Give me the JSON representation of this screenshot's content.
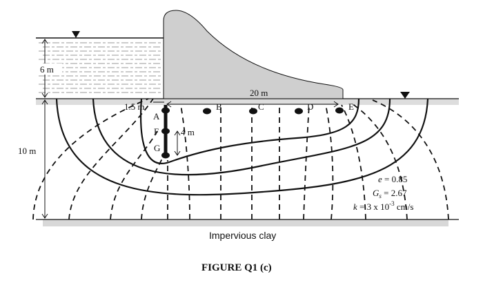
{
  "dimensions": {
    "water_depth": "6 m",
    "layer_depth": "10 m",
    "pile_offset": "1.5 m",
    "base_width": "20 m",
    "pile_depth": "4 m"
  },
  "points": [
    "A",
    "B",
    "C",
    "D",
    "E",
    "F",
    "G"
  ],
  "properties": {
    "void_ratio": {
      "symbol": "e",
      "text": " = 0.85"
    },
    "specific_gravity": {
      "symbol": "G",
      "subscript": "s",
      "text": " = 2.67"
    },
    "permeability": {
      "symbol": "k",
      "text": " = 3 x 10",
      "exponent": "-3",
      "unit": " cm/s"
    }
  },
  "layer": "Impervious clay",
  "caption": "FIGURE Q1 (c)"
}
